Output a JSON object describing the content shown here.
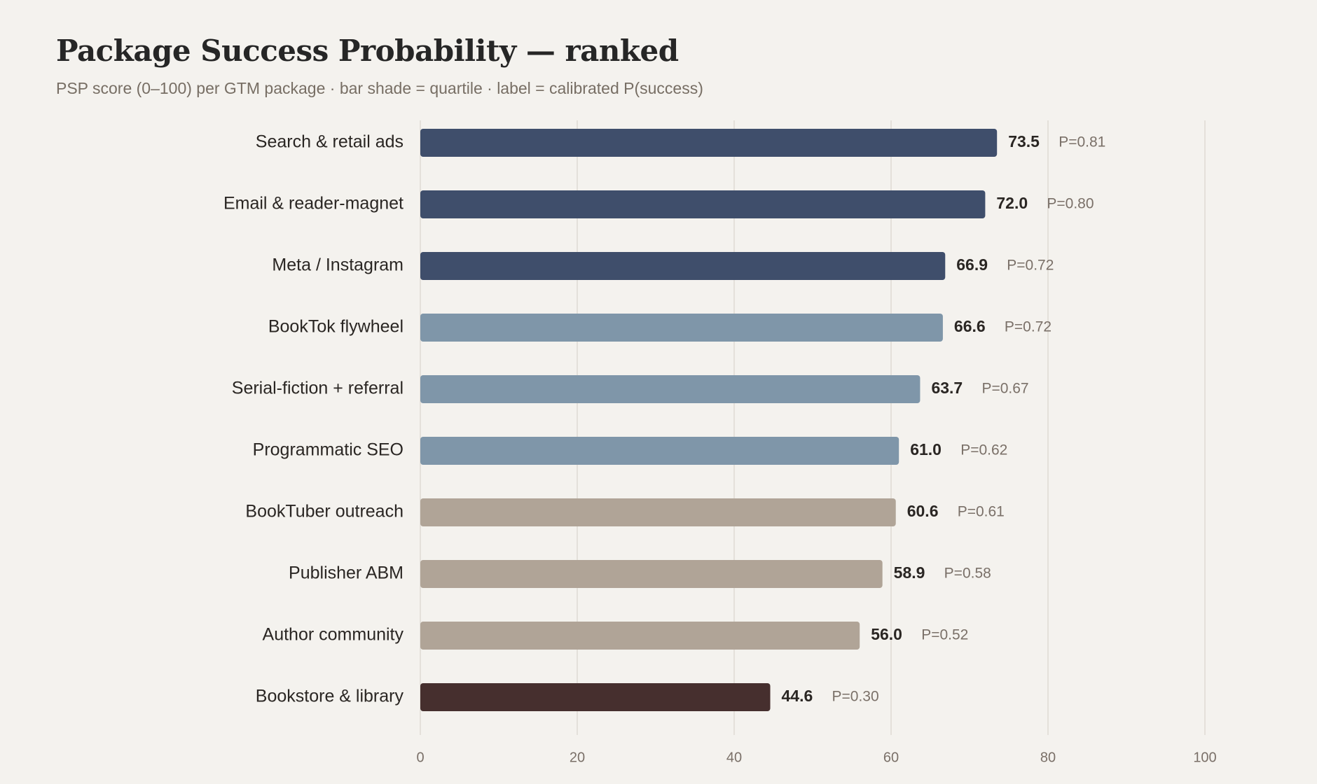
{
  "chart_data": {
    "type": "bar",
    "orientation": "horizontal",
    "title": "Package Success Probability — ranked",
    "subtitle": "PSP score (0–100) per GTM package · bar shade = quartile · label = calibrated P(success)",
    "xlabel": "",
    "ylabel": "",
    "xlim": [
      0,
      100
    ],
    "x_ticks": [
      0,
      20,
      40,
      60,
      80,
      100
    ],
    "grid": true,
    "legend": "none",
    "categories": [
      "Search & retail ads",
      "Email & reader-magnet",
      "Meta / Instagram",
      "BookTok flywheel",
      "Serial-fiction + referral",
      "Programmatic SEO",
      "BookTuber outreach",
      "Publisher ABM",
      "Author community",
      "Bookstore & library"
    ],
    "values": [
      73.5,
      72.0,
      66.9,
      66.6,
      63.7,
      61.0,
      60.6,
      58.9,
      56.0,
      44.6
    ],
    "value_labels": [
      "73.5",
      "72.0",
      "66.9",
      "66.6",
      "63.7",
      "61.0",
      "60.6",
      "58.9",
      "56.0",
      "44.6"
    ],
    "p_labels": [
      "P=0.81",
      "P=0.80",
      "P=0.72",
      "P=0.72",
      "P=0.67",
      "P=0.62",
      "P=0.61",
      "P=0.58",
      "P=0.52",
      "P=0.30"
    ],
    "quartile": [
      1,
      1,
      1,
      2,
      2,
      2,
      3,
      3,
      3,
      4
    ],
    "quartile_colors": [
      "#3f4e6b",
      "#7f96a9",
      "#b0a497",
      "#462f2e"
    ],
    "colors": {
      "background": "#f4f2ee",
      "grid": "#dedad4",
      "label": "#2a2623",
      "muted": "#7a7068"
    }
  }
}
